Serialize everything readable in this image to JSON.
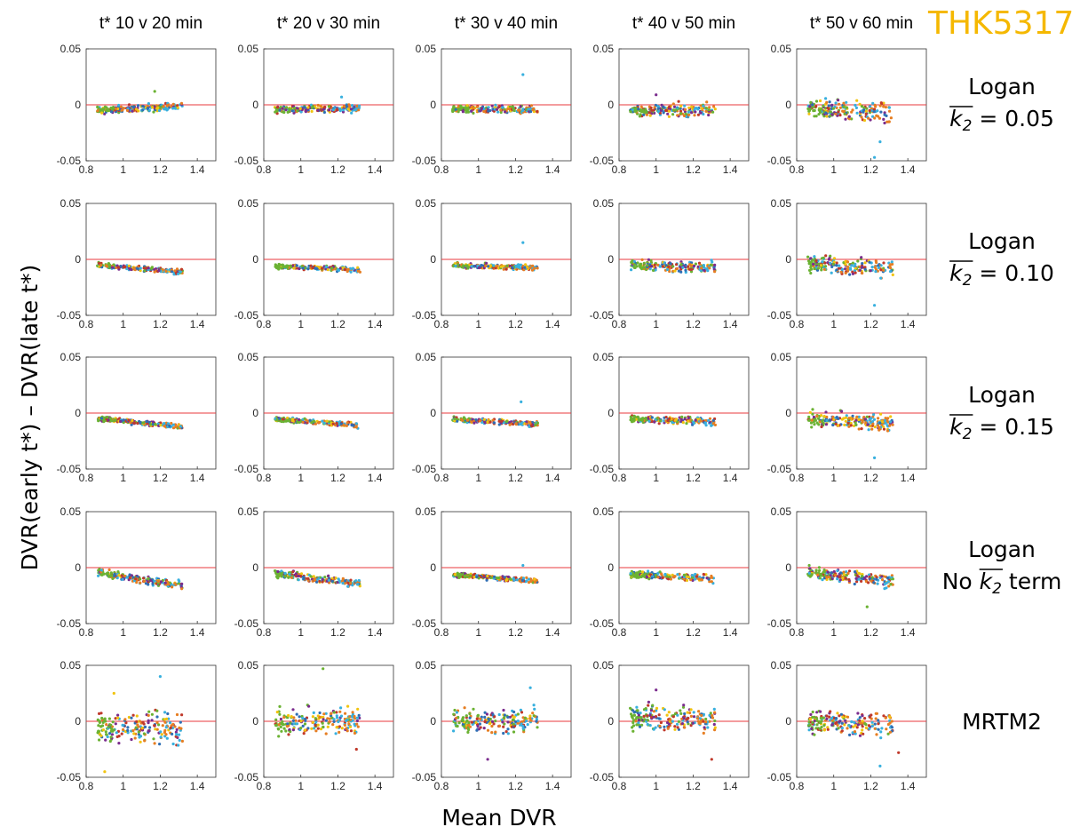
{
  "brand": {
    "text": "THK5317",
    "color": "#F5B800"
  },
  "colors": {
    "refline": "#E8383D",
    "axis": "#333333",
    "points": [
      "#2E6FB5",
      "#E67E22",
      "#F1C40F",
      "#7B2D8E",
      "#6BB233",
      "#38B0DE",
      "#C0392B"
    ]
  },
  "chart_data": {
    "type": "scatter",
    "layout": "5x5 grid of scatter plots",
    "xlabel": "Mean DVR",
    "ylabel": "DVR(early t*) – DVR(late t*)",
    "xlim": [
      0.8,
      1.5
    ],
    "ylim": [
      -0.05,
      0.05
    ],
    "x_ticks": [
      "0.8",
      "1",
      "1.2",
      "1.4"
    ],
    "y_ticks": [
      "0.05",
      "0",
      "-0.05"
    ],
    "reference_line_y": 0,
    "grid": false,
    "columns": [
      "t* 10 v 20 min",
      "t* 20 v 30 min",
      "t* 30 v 40 min",
      "t* 40 v 50 min",
      "t* 50 v 60 min"
    ],
    "rows": [
      {
        "line1": "Logan",
        "line2_pre": "",
        "k": "k",
        "sub": "2",
        "line2_post": " = 0.05"
      },
      {
        "line1": "Logan",
        "line2_pre": "",
        "k": "k",
        "sub": "2",
        "line2_post": " = 0.10"
      },
      {
        "line1": "Logan",
        "line2_pre": "",
        "k": "k",
        "sub": "2",
        "line2_post": " = 0.15"
      },
      {
        "line1": "Logan",
        "line2_pre": "No ",
        "k": "k",
        "sub": "2",
        "line2_post": " term"
      },
      {
        "line1": "MRTM2",
        "line2_pre": "",
        "k": "",
        "sub": "",
        "line2_post": ""
      }
    ],
    "panel_summaries": [
      [
        {
          "b0": -0.004,
          "slope": 0.008,
          "spread": 0.003,
          "outliers": [
            [
              1.17,
              0.012
            ]
          ]
        },
        {
          "b0": -0.004,
          "slope": 0.004,
          "spread": 0.003,
          "outliers": [
            [
              1.22,
              0.007
            ]
          ]
        },
        {
          "b0": -0.004,
          "slope": 0.0,
          "spread": 0.003,
          "outliers": [
            [
              1.24,
              0.027
            ]
          ]
        },
        {
          "b0": -0.005,
          "slope": 0.0,
          "spread": 0.005,
          "outliers": [
            [
              1.0,
              0.009
            ]
          ]
        },
        {
          "b0": -0.004,
          "slope": -0.01,
          "spread": 0.008,
          "outliers": [
            [
              1.22,
              -0.047
            ],
            [
              1.25,
              -0.033
            ]
          ]
        }
      ],
      [
        {
          "b0": -0.007,
          "slope": -0.012,
          "spread": 0.002,
          "outliers": []
        },
        {
          "b0": -0.007,
          "slope": -0.008,
          "spread": 0.002,
          "outliers": []
        },
        {
          "b0": -0.006,
          "slope": -0.005,
          "spread": 0.002,
          "outliers": [
            [
              1.24,
              0.015
            ]
          ]
        },
        {
          "b0": -0.006,
          "slope": -0.004,
          "spread": 0.004,
          "outliers": []
        },
        {
          "b0": -0.005,
          "slope": -0.012,
          "spread": 0.007,
          "outliers": [
            [
              1.22,
              -0.041
            ]
          ]
        }
      ],
      [
        {
          "b0": -0.007,
          "slope": -0.016,
          "spread": 0.002,
          "outliers": []
        },
        {
          "b0": -0.007,
          "slope": -0.012,
          "spread": 0.002,
          "outliers": []
        },
        {
          "b0": -0.007,
          "slope": -0.008,
          "spread": 0.002,
          "outliers": [
            [
              1.23,
              0.01
            ]
          ]
        },
        {
          "b0": -0.006,
          "slope": -0.006,
          "spread": 0.003,
          "outliers": []
        },
        {
          "b0": -0.006,
          "slope": -0.012,
          "spread": 0.006,
          "outliers": [
            [
              1.22,
              -0.04
            ]
          ]
        }
      ],
      [
        {
          "b0": -0.008,
          "slope": -0.026,
          "spread": 0.003,
          "outliers": []
        },
        {
          "b0": -0.008,
          "slope": -0.02,
          "spread": 0.003,
          "outliers": []
        },
        {
          "b0": -0.008,
          "slope": -0.012,
          "spread": 0.002,
          "outliers": [
            [
              1.24,
              0.002
            ]
          ]
        },
        {
          "b0": -0.007,
          "slope": -0.008,
          "spread": 0.003,
          "outliers": []
        },
        {
          "b0": -0.007,
          "slope": -0.015,
          "spread": 0.005,
          "outliers": [
            [
              1.18,
              -0.035
            ]
          ]
        }
      ],
      [
        {
          "b0": -0.006,
          "slope": 0.0,
          "spread": 0.013,
          "outliers": [
            [
              0.9,
              -0.045
            ],
            [
              0.95,
              0.025
            ],
            [
              1.2,
              0.04
            ]
          ]
        },
        {
          "b0": 0.0,
          "slope": 0.0,
          "spread": 0.01,
          "outliers": [
            [
              1.12,
              0.047
            ],
            [
              1.3,
              -0.025
            ]
          ]
        },
        {
          "b0": 0.0,
          "slope": 0.0,
          "spread": 0.009,
          "outliers": [
            [
              1.05,
              -0.034
            ],
            [
              1.28,
              0.03
            ]
          ]
        },
        {
          "b0": 0.003,
          "slope": -0.005,
          "spread": 0.01,
          "outliers": [
            [
              1.0,
              0.028
            ],
            [
              1.3,
              -0.034
            ]
          ]
        },
        {
          "b0": -0.001,
          "slope": -0.005,
          "spread": 0.01,
          "outliers": [
            [
              1.25,
              -0.04
            ],
            [
              1.35,
              -0.028
            ]
          ]
        }
      ]
    ]
  }
}
